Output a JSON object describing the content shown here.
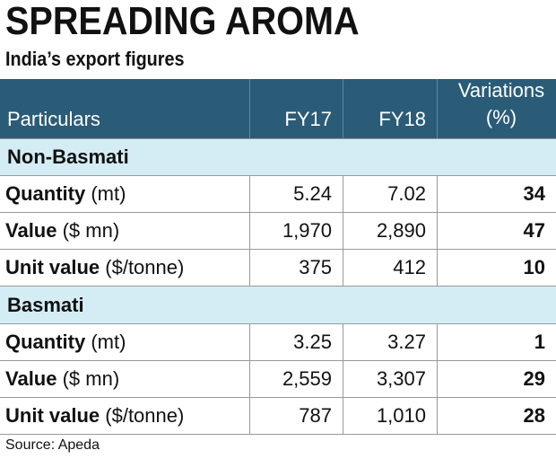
{
  "header": {
    "title": "SPREADING AROMA",
    "subtitle": "India’s export figures"
  },
  "table": {
    "columns": [
      "Particulars",
      "FY17",
      "FY18",
      "Variations (%)"
    ],
    "sections": [
      {
        "name": "Non-Basmati",
        "rows": [
          {
            "label": "Quantity",
            "unit": "(mt)",
            "cells": [
              "5.24",
              "7.02",
              "34"
            ]
          },
          {
            "label": "Value",
            "unit": "($ mn)",
            "cells": [
              "1,970",
              "2,890",
              "47"
            ]
          },
          {
            "label": "Unit value",
            "unit": "($/tonne)",
            "cells": [
              "375",
              "412",
              "10"
            ]
          }
        ]
      },
      {
        "name": "Basmati",
        "rows": [
          {
            "label": "Quantity",
            "unit": "(mt)",
            "cells": [
              "3.25",
              "3.27",
              "1"
            ]
          },
          {
            "label": "Value",
            "unit": "($ mn)",
            "cells": [
              "2,559",
              "3,307",
              "29"
            ]
          },
          {
            "label": "Unit value",
            "unit": "($/tonne)",
            "cells": [
              "787",
              "1,010",
              "28"
            ]
          }
        ]
      }
    ]
  },
  "footer": {
    "source": "Source: Apeda"
  }
}
